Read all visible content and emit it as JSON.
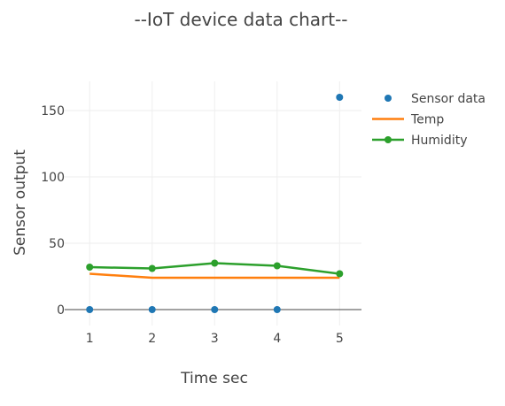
{
  "chart_data": {
    "type": "line",
    "title": "--IoT device data chart--",
    "xlabel": "Time sec",
    "ylabel": "Sensor output",
    "x": [
      1,
      2,
      3,
      4,
      5
    ],
    "x_ticks": [
      "1",
      "2",
      "3",
      "4",
      "5"
    ],
    "xlim": [
      0.6,
      5.35
    ],
    "y_ticks": [
      0,
      50,
      100,
      150
    ],
    "y_tick_labels": [
      "0",
      "50",
      "100",
      "150"
    ],
    "ylim": [
      -12,
      172
    ],
    "grid": true,
    "legend_position": "top-right",
    "series": [
      {
        "name": "Sensor data",
        "mode": "markers",
        "color": "#1f77b4",
        "x": [
          1,
          2,
          3,
          4,
          5
        ],
        "values": [
          0,
          0,
          0,
          0,
          160
        ]
      },
      {
        "name": "Temp",
        "mode": "lines",
        "color": "#ff7f0e",
        "x": [
          1,
          2,
          3,
          4,
          5
        ],
        "values": [
          27,
          24,
          24,
          24,
          24
        ]
      },
      {
        "name": "Humidity",
        "mode": "lines+markers",
        "color": "#2ca02c",
        "x": [
          1,
          2,
          3,
          4,
          5
        ],
        "values": [
          32,
          31,
          35,
          33,
          27
        ]
      }
    ]
  }
}
